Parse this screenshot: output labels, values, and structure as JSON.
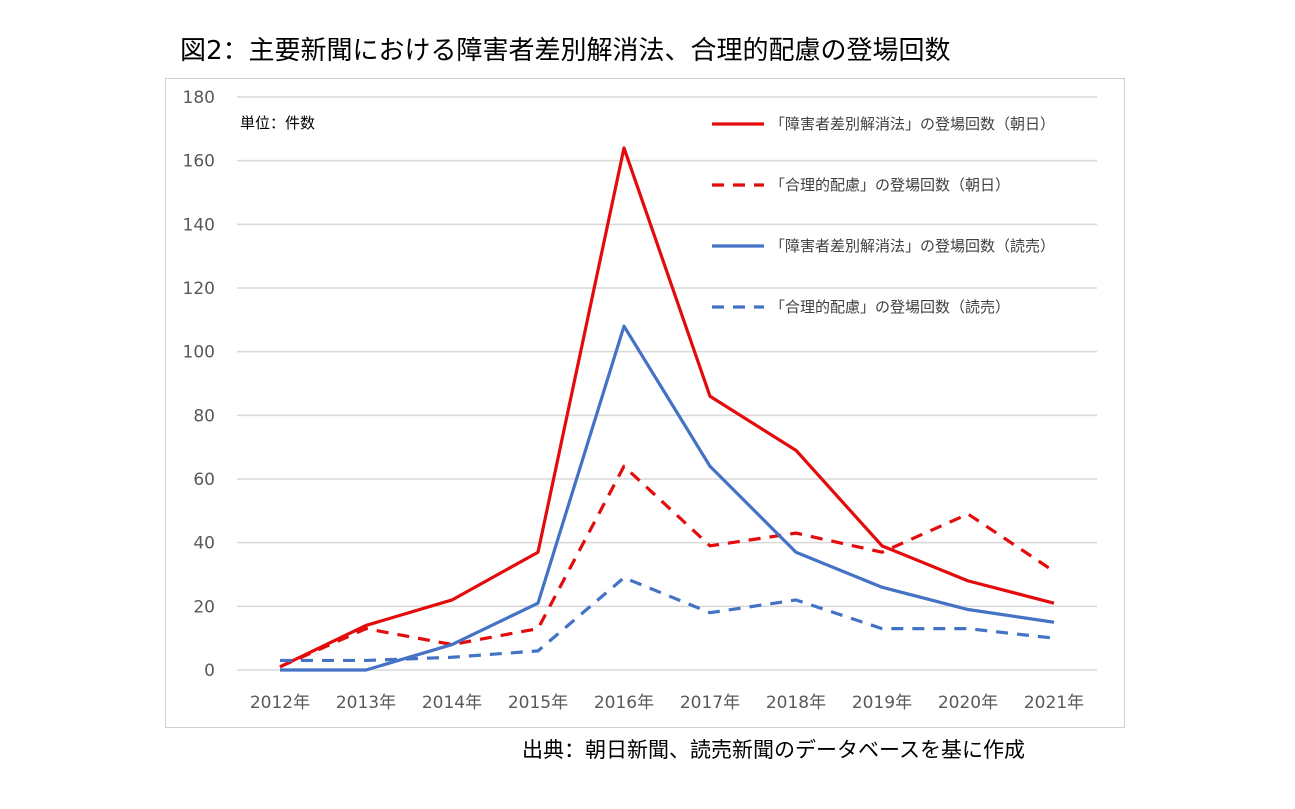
{
  "title": "図2：主要新聞における障害者差別解消法、合理的配慮の登場回数",
  "source": "出典：朝日新聞、読売新聞のデータベースを基に作成",
  "chart_data": {
    "type": "line",
    "title": "図2：主要新聞における障害者差別解消法、合理的配慮の登場回数",
    "unit_label": "単位：件数",
    "xlabel": "",
    "ylabel": "",
    "categories": [
      "2012年",
      "2013年",
      "2014年",
      "2015年",
      "2016年",
      "2017年",
      "2018年",
      "2019年",
      "2020年",
      "2021年"
    ],
    "ylim": [
      0,
      180
    ],
    "yticks": [
      0,
      20,
      40,
      60,
      80,
      100,
      120,
      140,
      160,
      180
    ],
    "grid": true,
    "legend_position": "top-right",
    "series": [
      {
        "name": "「障害者差別解消法」の登場回数（朝日）",
        "color": "#e30b0b",
        "dashed": false,
        "values": [
          1,
          14,
          22,
          37,
          164,
          86,
          69,
          39,
          28,
          21
        ]
      },
      {
        "name": "「合理的配慮」の登場回数（朝日）",
        "color": "#e30b0b",
        "dashed": true,
        "values": [
          1,
          13,
          8,
          13,
          64,
          39,
          43,
          37,
          49,
          31
        ]
      },
      {
        "name": "「障害者差別解消法」の登場回数（読売）",
        "color": "#4472c4",
        "dashed": false,
        "values": [
          0,
          0,
          8,
          21,
          108,
          64,
          37,
          26,
          19,
          15
        ]
      },
      {
        "name": "「合理的配慮」の登場回数（読売）",
        "color": "#4472c4",
        "dashed": true,
        "values": [
          3,
          3,
          4,
          6,
          29,
          18,
          22,
          13,
          13,
          10
        ]
      }
    ]
  }
}
